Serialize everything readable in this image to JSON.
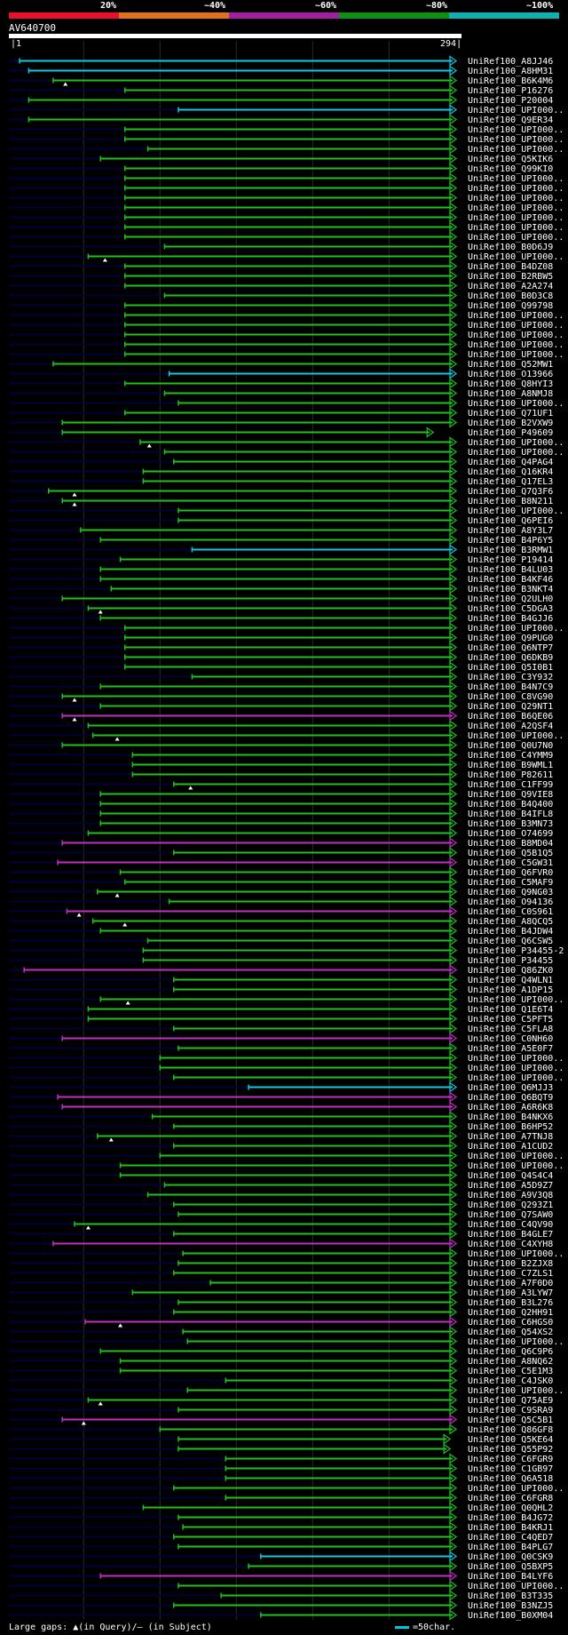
{
  "query": {
    "id": "AV640700",
    "start": "1",
    "end": "294",
    "length": 294
  },
  "identity_scale": {
    "labels": [
      "20%",
      "~40%",
      "~60%",
      "~80%",
      "~100%"
    ],
    "colors": [
      "#e8102a",
      "#e07020",
      "#a020a0",
      "#109010",
      "#10b0b0"
    ]
  },
  "footer": {
    "large_gaps": "Large gaps: ",
    "in_query_glyph": "▲",
    "in_query": "(in Query)/",
    "in_subject_glyph": "–",
    "in_subject": " (in Subject)",
    "scale_text": "=50char."
  },
  "chart_data": {
    "type": "alignment-overview",
    "x_unit": "query residue",
    "xlim": [
      1,
      294
    ],
    "gridlines": [
      50,
      100,
      150,
      200,
      250
    ],
    "colors": {
      "green": "#20c020",
      "cyan": "#10c8e0",
      "magenta": "#c030c0"
    },
    "hits": [
      {
        "label": "UniRef100_A8JJ46",
        "start": 8,
        "color": "cyan"
      },
      {
        "label": "UniRef100_A8HM31",
        "start": 14,
        "color": "cyan"
      },
      {
        "label": "UniRef100_B6K4M6",
        "start": 30,
        "color": "green",
        "gap": 38
      },
      {
        "label": "UniRef100_P16276",
        "start": 77,
        "color": "green"
      },
      {
        "label": "UniRef100_P20004",
        "start": 14,
        "color": "green"
      },
      {
        "label": "UniRef100_UPI000..",
        "start": 112,
        "color": "cyan"
      },
      {
        "label": "UniRef100_Q9ER34",
        "start": 14,
        "color": "green"
      },
      {
        "label": "UniRef100_UPI000..",
        "start": 77,
        "color": "green"
      },
      {
        "label": "UniRef100_UPI000..",
        "start": 77,
        "color": "green"
      },
      {
        "label": "UniRef100_UPI000..",
        "start": 92,
        "color": "green"
      },
      {
        "label": "UniRef100_Q5KIK6",
        "start": 61,
        "color": "green"
      },
      {
        "label": "UniRef100_Q99KI0",
        "start": 77,
        "color": "green"
      },
      {
        "label": "UniRef100_UPI000..",
        "start": 77,
        "color": "green"
      },
      {
        "label": "UniRef100_UPI000..",
        "start": 77,
        "color": "green"
      },
      {
        "label": "UniRef100_UPI000..",
        "start": 77,
        "color": "green"
      },
      {
        "label": "UniRef100_UPI000..",
        "start": 77,
        "color": "green"
      },
      {
        "label": "UniRef100_UPI000..",
        "start": 77,
        "color": "green"
      },
      {
        "label": "UniRef100_UPI000..",
        "start": 77,
        "color": "green"
      },
      {
        "label": "UniRef100_UPI000..",
        "start": 77,
        "color": "green"
      },
      {
        "label": "UniRef100_B0D6J9",
        "start": 103,
        "color": "green"
      },
      {
        "label": "UniRef100_UPI000..",
        "start": 53,
        "color": "green",
        "gap": 64
      },
      {
        "label": "UniRef100_B4DZ08",
        "start": 77,
        "color": "green"
      },
      {
        "label": "UniRef100_B2RBW5",
        "start": 77,
        "color": "green"
      },
      {
        "label": "UniRef100_A2A274",
        "start": 77,
        "color": "green"
      },
      {
        "label": "UniRef100_B0D3C8",
        "start": 103,
        "color": "green"
      },
      {
        "label": "UniRef100_Q99798",
        "start": 77,
        "color": "green"
      },
      {
        "label": "UniRef100_UPI000..",
        "start": 77,
        "color": "green"
      },
      {
        "label": "UniRef100_UPI000..",
        "start": 77,
        "color": "green"
      },
      {
        "label": "UniRef100_UPI000..",
        "start": 77,
        "color": "green"
      },
      {
        "label": "UniRef100_UPI000..",
        "start": 77,
        "color": "green"
      },
      {
        "label": "UniRef100_UPI000..",
        "start": 77,
        "color": "green"
      },
      {
        "label": "UniRef100_Q52MW1",
        "start": 30,
        "color": "green"
      },
      {
        "label": "UniRef100_O13966",
        "start": 106,
        "color": "cyan"
      },
      {
        "label": "UniRef100_Q8HYI3",
        "start": 77,
        "color": "green"
      },
      {
        "label": "UniRef100_A8NMJ8",
        "start": 103,
        "color": "green"
      },
      {
        "label": "UniRef100_UPI000..",
        "start": 112,
        "color": "green"
      },
      {
        "label": "UniRef100_Q71UF1",
        "start": 77,
        "color": "green"
      },
      {
        "label": "UniRef100_B2VXW9",
        "start": 36,
        "color": "green"
      },
      {
        "label": "UniRef100_P49609",
        "start": 36,
        "color": "green",
        "end": 279
      },
      {
        "label": "UniRef100_UPI000..",
        "start": 87,
        "color": "green",
        "gap": 93
      },
      {
        "label": "UniRef100_UPI000..",
        "start": 103,
        "color": "green"
      },
      {
        "label": "UniRef100_Q4PAG4",
        "start": 109,
        "color": "green"
      },
      {
        "label": "UniRef100_Q16KR4",
        "start": 89,
        "color": "green"
      },
      {
        "label": "UniRef100_Q17EL3",
        "start": 89,
        "color": "green"
      },
      {
        "label": "UniRef100_Q7Q3F6",
        "start": 27,
        "color": "green",
        "gap": 44
      },
      {
        "label": "UniRef100_B8N211",
        "start": 36,
        "color": "green",
        "gap": 44
      },
      {
        "label": "UniRef100_UPI000..",
        "start": 112,
        "color": "green"
      },
      {
        "label": "UniRef100_Q6PEI6",
        "start": 112,
        "color": "green"
      },
      {
        "label": "UniRef100_A8Y3L7",
        "start": 48,
        "color": "green"
      },
      {
        "label": "UniRef100_B4P6Y5",
        "start": 61,
        "color": "green"
      },
      {
        "label": "UniRef100_B3RMW1",
        "start": 121,
        "color": "cyan"
      },
      {
        "label": "UniRef100_P19414",
        "start": 74,
        "color": "green"
      },
      {
        "label": "UniRef100_B4LU03",
        "start": 61,
        "color": "green"
      },
      {
        "label": "UniRef100_B4KF46",
        "start": 61,
        "color": "green"
      },
      {
        "label": "UniRef100_B3NKT4",
        "start": 68,
        "color": "green"
      },
      {
        "label": "UniRef100_Q2ULH0",
        "start": 36,
        "color": "green"
      },
      {
        "label": "UniRef100_C5DGA3",
        "start": 53,
        "color": "green",
        "gap": 61
      },
      {
        "label": "UniRef100_B4GJJ6",
        "start": 61,
        "color": "green"
      },
      {
        "label": "UniRef100_UPI000..",
        "start": 77,
        "color": "green"
      },
      {
        "label": "UniRef100_Q9PUG0",
        "start": 77,
        "color": "green"
      },
      {
        "label": "UniRef100_Q6NTP7",
        "start": 77,
        "color": "green"
      },
      {
        "label": "UniRef100_Q6DKB9",
        "start": 77,
        "color": "green"
      },
      {
        "label": "UniRef100_Q5I0B1",
        "start": 77,
        "color": "green"
      },
      {
        "label": "UniRef100_C3Y932",
        "start": 121,
        "color": "green"
      },
      {
        "label": "UniRef100_B4N7C9",
        "start": 61,
        "color": "green"
      },
      {
        "label": "UniRef100_C8VG90",
        "start": 36,
        "color": "green",
        "gap": 44
      },
      {
        "label": "UniRef100_Q29NT1",
        "start": 61,
        "color": "green"
      },
      {
        "label": "UniRef100_B6QE06",
        "start": 36,
        "color": "magenta",
        "gap": 44
      },
      {
        "label": "UniRef100_A2QSF4",
        "start": 53,
        "color": "green"
      },
      {
        "label": "UniRef100_UPI000..",
        "start": 56,
        "color": "green",
        "gap": 72
      },
      {
        "label": "UniRef100_Q0U7N0",
        "start": 36,
        "color": "green"
      },
      {
        "label": "UniRef100_C4YMM9",
        "start": 82,
        "color": "green"
      },
      {
        "label": "UniRef100_B9WML1",
        "start": 82,
        "color": "green"
      },
      {
        "label": "UniRef100_P82611",
        "start": 82,
        "color": "green"
      },
      {
        "label": "UniRef100_C1FF99",
        "start": 109,
        "color": "green",
        "gap": 120
      },
      {
        "label": "UniRef100_Q9VIE8",
        "start": 61,
        "color": "green"
      },
      {
        "label": "UniRef100_B4Q400",
        "start": 61,
        "color": "green"
      },
      {
        "label": "UniRef100_B4IFL8",
        "start": 61,
        "color": "green"
      },
      {
        "label": "UniRef100_B3MN73",
        "start": 61,
        "color": "green"
      },
      {
        "label": "UniRef100_O74699",
        "start": 53,
        "color": "green"
      },
      {
        "label": "UniRef100_B8MD04",
        "start": 36,
        "color": "magenta"
      },
      {
        "label": "UniRef100_Q5B1Q5",
        "start": 109,
        "color": "green"
      },
      {
        "label": "UniRef100_C5GW31",
        "start": 33,
        "color": "magenta"
      },
      {
        "label": "UniRef100_Q6FVR0",
        "start": 74,
        "color": "green"
      },
      {
        "label": "UniRef100_C5MAF9",
        "start": 77,
        "color": "green"
      },
      {
        "label": "UniRef100_Q9NG03",
        "start": 59,
        "color": "green",
        "gap": 72
      },
      {
        "label": "UniRef100_O94136",
        "start": 106,
        "color": "green"
      },
      {
        "label": "UniRef100_C0S961",
        "start": 39,
        "color": "magenta",
        "gap": 47
      },
      {
        "label": "UniRef100_A8QCQ5",
        "start": 56,
        "color": "green",
        "gap": 77
      },
      {
        "label": "UniRef100_B4JDW4",
        "start": 61,
        "color": "green"
      },
      {
        "label": "UniRef100_Q6CSW5",
        "start": 92,
        "color": "green"
      },
      {
        "label": "UniRef100_P34455-2",
        "start": 89,
        "color": "green"
      },
      {
        "label": "UniRef100_P34455",
        "start": 89,
        "color": "green"
      },
      {
        "label": "UniRef100_Q86ZK0",
        "start": 11,
        "color": "magenta"
      },
      {
        "label": "UniRef100_Q4WLN1",
        "start": 109,
        "color": "green"
      },
      {
        "label": "UniRef100_A1DP15",
        "start": 109,
        "color": "green"
      },
      {
        "label": "UniRef100_UPI000..",
        "start": 61,
        "color": "green",
        "gap": 79
      },
      {
        "label": "UniRef100_Q1E6T4",
        "start": 53,
        "color": "green"
      },
      {
        "label": "UniRef100_C5PFT5",
        "start": 53,
        "color": "green"
      },
      {
        "label": "UniRef100_C5FLA8",
        "start": 109,
        "color": "green"
      },
      {
        "label": "UniRef100_C0NH60",
        "start": 36,
        "color": "magenta"
      },
      {
        "label": "UniRef100_A5E0F7",
        "start": 112,
        "color": "green"
      },
      {
        "label": "UniRef100_UPI000..",
        "start": 100,
        "color": "green"
      },
      {
        "label": "UniRef100_UPI000..",
        "start": 100,
        "color": "green"
      },
      {
        "label": "UniRef100_UPI000..",
        "start": 109,
        "color": "green"
      },
      {
        "label": "UniRef100_Q6MJJ3",
        "start": 158,
        "color": "cyan"
      },
      {
        "label": "UniRef100_Q6BQT9",
        "start": 33,
        "color": "magenta"
      },
      {
        "label": "UniRef100_A6R6K8",
        "start": 36,
        "color": "magenta"
      },
      {
        "label": "UniRef100_B4NKX6",
        "start": 95,
        "color": "green"
      },
      {
        "label": "UniRef100_B6HP52",
        "start": 109,
        "color": "green"
      },
      {
        "label": "UniRef100_A7TNJ8",
        "start": 59,
        "color": "green",
        "gap": 68
      },
      {
        "label": "UniRef100_A1CUD2",
        "start": 109,
        "color": "green"
      },
      {
        "label": "UniRef100_UPI000..",
        "start": 100,
        "color": "green"
      },
      {
        "label": "UniRef100_UPI000..",
        "start": 74,
        "color": "green"
      },
      {
        "label": "UniRef100_Q4S4C4",
        "start": 74,
        "color": "green"
      },
      {
        "label": "UniRef100_A5D9Z7",
        "start": 103,
        "color": "green"
      },
      {
        "label": "UniRef100_A9V3Q8",
        "start": 92,
        "color": "green"
      },
      {
        "label": "UniRef100_Q293Z1",
        "start": 109,
        "color": "green"
      },
      {
        "label": "UniRef100_Q7SAW0",
        "start": 112,
        "color": "green"
      },
      {
        "label": "UniRef100_C4QV90",
        "start": 44,
        "color": "green",
        "gap": 53
      },
      {
        "label": "UniRef100_B4GLE7",
        "start": 109,
        "color": "green"
      },
      {
        "label": "UniRef100_C4XYH8",
        "start": 30,
        "color": "magenta"
      },
      {
        "label": "UniRef100_UPI000..",
        "start": 115,
        "color": "green"
      },
      {
        "label": "UniRef100_B2ZJX8",
        "start": 112,
        "color": "green"
      },
      {
        "label": "UniRef100_C7ZLS1",
        "start": 109,
        "color": "green"
      },
      {
        "label": "UniRef100_A7F0D0",
        "start": 133,
        "color": "green"
      },
      {
        "label": "UniRef100_A3LYW7",
        "start": 82,
        "color": "green"
      },
      {
        "label": "UniRef100_B3L276",
        "start": 112,
        "color": "green"
      },
      {
        "label": "UniRef100_Q2HH91",
        "start": 109,
        "color": "green"
      },
      {
        "label": "UniRef100_C6HGS0",
        "start": 51,
        "color": "magenta",
        "gap": 74
      },
      {
        "label": "UniRef100_Q54XS2",
        "start": 115,
        "color": "green"
      },
      {
        "label": "UniRef100_UPI000..",
        "start": 118,
        "color": "green"
      },
      {
        "label": "UniRef100_Q6C9P6",
        "start": 61,
        "color": "green"
      },
      {
        "label": "UniRef100_A8NQ62",
        "start": 74,
        "color": "green"
      },
      {
        "label": "UniRef100_C5E1M3",
        "start": 74,
        "color": "green"
      },
      {
        "label": "UniRef100_C4JSK0",
        "start": 143,
        "color": "green"
      },
      {
        "label": "UniRef100_UPI000..",
        "start": 118,
        "color": "green"
      },
      {
        "label": "UniRef100_Q75AE9",
        "start": 53,
        "color": "green",
        "gap": 61
      },
      {
        "label": "UniRef100_C9SRA9",
        "start": 112,
        "color": "green"
      },
      {
        "label": "UniRef100_Q5C5B1",
        "start": 36,
        "color": "magenta",
        "gap": 50
      },
      {
        "label": "UniRef100_Q86GF8",
        "start": 100,
        "color": "green"
      },
      {
        "label": "UniRef100_Q5KE64",
        "start": 112,
        "color": "green",
        "end": 290
      },
      {
        "label": "UniRef100_Q55P92",
        "start": 112,
        "color": "green",
        "end": 290
      },
      {
        "label": "UniRef100_C6FGR9",
        "start": 143,
        "color": "green"
      },
      {
        "label": "UniRef100_C1GB97",
        "start": 143,
        "color": "green"
      },
      {
        "label": "UniRef100_Q6A518",
        "start": 143,
        "color": "green"
      },
      {
        "label": "UniRef100_UPI000..",
        "start": 109,
        "color": "green"
      },
      {
        "label": "UniRef100_C6FGR8",
        "start": 143,
        "color": "green"
      },
      {
        "label": "UniRef100_Q0QHL2",
        "start": 89,
        "color": "green"
      },
      {
        "label": "UniRef100_B4JG72",
        "start": 112,
        "color": "green"
      },
      {
        "label": "UniRef100_B4KRJ1",
        "start": 115,
        "color": "green"
      },
      {
        "label": "UniRef100_C4QED7",
        "start": 109,
        "color": "green"
      },
      {
        "label": "UniRef100_B4PLG7",
        "start": 112,
        "color": "green"
      },
      {
        "label": "UniRef100_Q0CSK9",
        "start": 166,
        "color": "cyan"
      },
      {
        "label": "UniRef100_Q5BXP5",
        "start": 158,
        "color": "green"
      },
      {
        "label": "UniRef100_B4LYF6",
        "start": 61,
        "color": "magenta"
      },
      {
        "label": "UniRef100_UPI000..",
        "start": 112,
        "color": "green"
      },
      {
        "label": "UniRef100_B3T335",
        "start": 140,
        "color": "green"
      },
      {
        "label": "UniRef100_B3NZJ5",
        "start": 109,
        "color": "green"
      },
      {
        "label": "UniRef100_B0XM04",
        "start": 166,
        "color": "green"
      }
    ]
  }
}
